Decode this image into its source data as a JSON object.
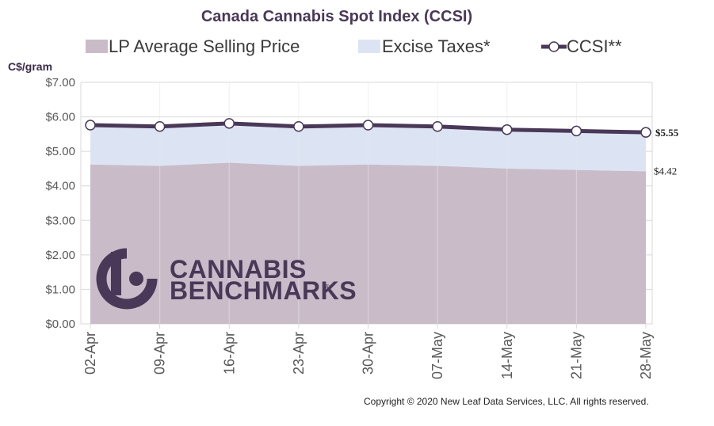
{
  "chart_data": {
    "type": "area",
    "title": "Canada Cannabis Spot Index (CCSI)",
    "ylabel": "C$/gram",
    "ylim": [
      0,
      7
    ],
    "yticks": [
      "$0.00",
      "$1.00",
      "$2.00",
      "$3.00",
      "$4.00",
      "$5.00",
      "$6.00",
      "$7.00"
    ],
    "categories": [
      "02-Apr",
      "09-Apr",
      "16-Apr",
      "23-Apr",
      "30-Apr",
      "07-May",
      "14-May",
      "21-May",
      "28-May"
    ],
    "grid": true,
    "legend_position": "top",
    "series": [
      {
        "name": "LP Average Selling Price",
        "kind": "area",
        "color": "#c9bcc8",
        "values": [
          4.62,
          4.58,
          4.67,
          4.58,
          4.62,
          4.58,
          4.5,
          4.46,
          4.42
        ]
      },
      {
        "name": "Excise Taxes*",
        "kind": "stacked-area",
        "color": "#dce4f4",
        "values": [
          1.14,
          1.14,
          1.14,
          1.14,
          1.14,
          1.14,
          1.13,
          1.13,
          1.13
        ]
      },
      {
        "name": "CCSI**",
        "kind": "line",
        "color": "#4a3858",
        "values": [
          5.76,
          5.72,
          5.81,
          5.72,
          5.76,
          5.72,
          5.63,
          5.59,
          5.55
        ]
      }
    ],
    "end_labels": {
      "ccsi": "$5.55",
      "lp": "$4.42"
    }
  },
  "watermark": {
    "line1": "CANNABIS",
    "line2": "BENCHMARKS",
    "mark": "®"
  },
  "copyright": "Copyright © 2020 New Leaf Data Services, LLC. All rights reserved.",
  "colors": {
    "lp": "#c9bcc8",
    "excise": "#dce4f4",
    "ccsi": "#4a3858",
    "grid": "#d9d9d9"
  }
}
